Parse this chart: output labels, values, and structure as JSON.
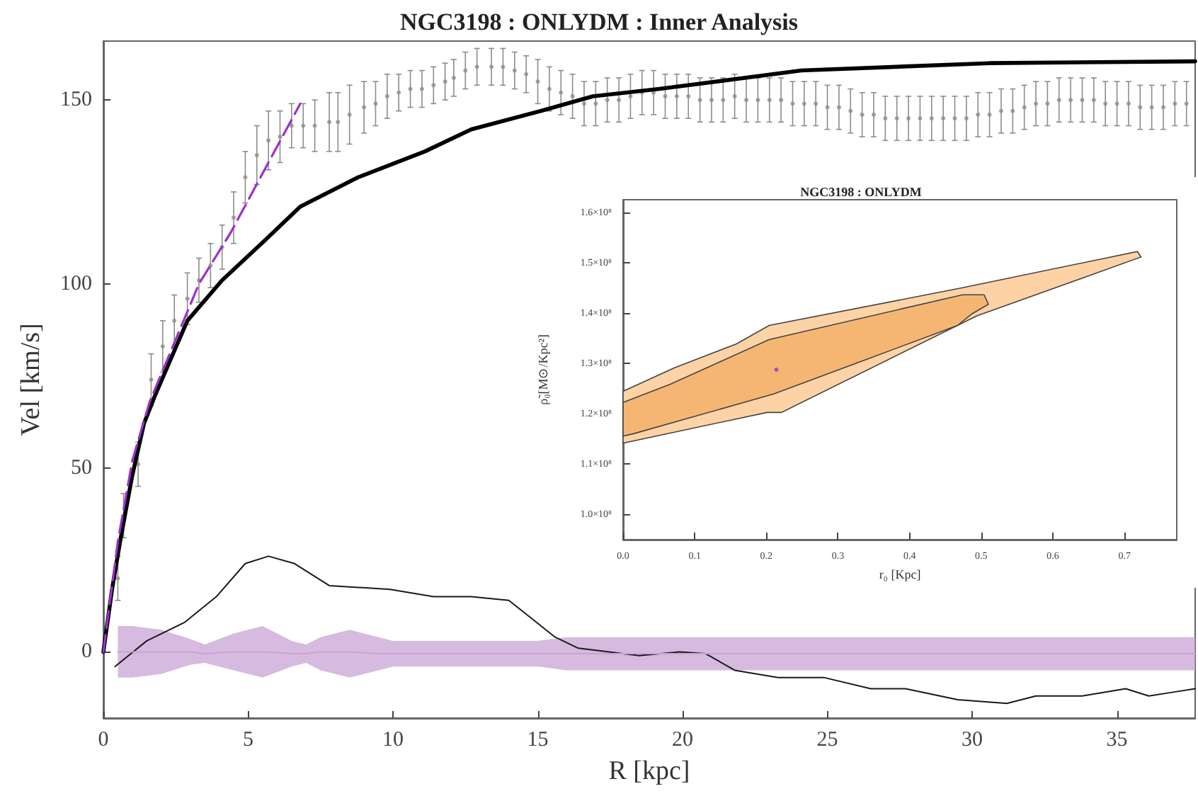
{
  "chart_data": [
    {
      "type": "line",
      "title": "NGC3198 : ONLYDM : Inner Analysis",
      "xlabel": "R [kpc]",
      "ylabel": "Vel [km/s]",
      "xlim": [
        0,
        37.7
      ],
      "ylim": [
        -18,
        166
      ],
      "xticks": [
        0,
        5,
        10,
        15,
        20,
        25,
        30,
        35
      ],
      "yticks": [
        0,
        50,
        100,
        150
      ],
      "grid": false,
      "series": [
        {
          "type": "scatter",
          "color": "#8c8c8c",
          "marker": "circle",
          "x": [
            0.5,
            0.7,
            1.2,
            1.65,
            2.05,
            2.45,
            2.9,
            3.3,
            3.7,
            4.1,
            4.5,
            4.9,
            5.3,
            5.7,
            6.1,
            6.5,
            6.9,
            7.3,
            7.8,
            8.1,
            8.5,
            9.0,
            9.4,
            9.8,
            10.2,
            10.6,
            11.0,
            11.4,
            11.8,
            12.1,
            12.5,
            12.9,
            13.4,
            13.8,
            14.2,
            14.6,
            15.0,
            15.4,
            15.8,
            16.2,
            16.6,
            17,
            17.4,
            17.8,
            18.2,
            18.6,
            19,
            19.4,
            19.8,
            20.2,
            20.6,
            21,
            21.4,
            21.8,
            22.2,
            22.6,
            23,
            23.4,
            23.8,
            24.2,
            24.6,
            25,
            25.4,
            25.8,
            26.2,
            26.6,
            27,
            27.4,
            27.8,
            28.2,
            28.6,
            29,
            29.4,
            29.8,
            30.2,
            30.6,
            31,
            31.4,
            31.8,
            32.2,
            32.6,
            33,
            33.4,
            33.8,
            34.2,
            34.6,
            35,
            35.4,
            35.8,
            36.2,
            36.6,
            37,
            37.4
          ],
          "values": [
            20,
            37,
            51,
            74,
            83,
            90,
            96,
            101,
            105,
            110,
            118,
            129,
            135,
            139,
            140,
            143,
            143,
            143,
            144,
            144,
            146,
            148,
            149,
            151,
            152,
            153,
            153,
            154,
            155,
            156,
            158,
            159,
            159,
            159,
            158,
            157,
            155,
            153,
            152,
            151,
            149,
            149,
            150,
            150,
            151,
            152,
            152,
            151,
            151,
            151,
            150,
            150,
            150,
            151,
            150,
            150,
            150,
            150,
            149,
            149,
            149,
            148,
            148,
            147,
            146,
            146,
            145,
            145,
            145,
            145,
            145,
            145,
            145,
            145,
            146,
            146,
            147,
            147,
            148,
            149,
            149,
            150,
            150,
            150,
            150,
            149,
            149,
            149,
            148,
            148,
            148,
            149,
            149
          ],
          "errors": [
            6,
            6,
            6,
            7,
            7,
            7,
            7,
            6,
            6,
            6,
            7,
            7,
            8,
            8,
            7,
            6,
            6,
            7,
            8,
            8,
            8,
            7,
            6,
            6,
            5,
            5,
            5,
            5,
            5,
            5,
            5,
            5,
            5,
            5,
            5,
            5,
            6,
            6,
            6,
            6,
            6,
            6,
            6,
            6,
            6,
            6,
            6,
            6,
            6,
            6,
            6,
            6,
            6,
            6,
            6,
            6,
            6,
            6,
            6,
            6,
            6,
            6,
            6,
            6,
            6,
            6,
            6,
            6,
            6,
            6,
            6,
            6,
            6,
            6,
            6,
            6,
            6,
            6,
            6,
            6,
            6,
            6,
            6,
            6,
            6,
            6,
            6,
            6,
            6,
            6,
            6,
            6,
            6
          ]
        },
        {
          "color": "#000000",
          "line_style": "solid",
          "x": [
            0,
            0.3,
            0.6,
            1.0,
            1.4,
            1.8,
            2.9,
            4.1,
            5.6,
            6.8,
            8.8,
            11.1,
            12.7,
            15.1,
            16.9,
            19.2,
            24.1,
            30.6,
            37.7
          ],
          "values": [
            0,
            17,
            31,
            48,
            62,
            70,
            90,
            101,
            112,
            121,
            129,
            136,
            142,
            147,
            151,
            153,
            158,
            160,
            160.5
          ]
        },
        {
          "color": "#9b30d0",
          "line_style": "dashed",
          "x": [
            0,
            0.5,
            1.0,
            1.6,
            3.3,
            4.4,
            5.7,
            6.8
          ],
          "values": [
            0,
            30,
            52,
            68,
            100,
            114,
            133,
            149
          ]
        },
        {
          "color": "#1a1a1a",
          "line_style": "solid",
          "x": [
            0.4,
            1.5,
            2.8,
            3.9,
            4.9,
            5.7,
            6.6,
            7.8,
            9.9,
            11.4,
            12.7,
            14.0,
            15.6,
            16.4,
            18.5,
            19.9,
            20.8,
            21.8,
            23.3,
            24.9,
            26.5,
            27.7,
            29.5,
            31.2,
            32.2,
            33.8,
            35.3,
            36.1,
            36.9,
            37.7
          ],
          "values": [
            -4,
            3,
            8,
            15,
            24,
            26,
            24,
            18,
            17,
            15,
            15,
            14,
            4,
            1,
            -1,
            0,
            -0.5,
            -5,
            -7,
            -7,
            -10,
            -10,
            -13,
            -14,
            -12,
            -12,
            -10,
            -12,
            -11,
            -10
          ]
        },
        {
          "color": "#c9a3d4",
          "line_style": "solid",
          "x": [
            0.5,
            1.0,
            2.0,
            3.0,
            3.5,
            4.5,
            5.5,
            6.5,
            7.0,
            7.5,
            8.5,
            9.5,
            10,
            12,
            15,
            16,
            20,
            25,
            30,
            35,
            37.7
          ],
          "values": [
            0,
            0,
            0,
            0,
            -0.5,
            0,
            0,
            -0.5,
            -0.5,
            0,
            0,
            -0.5,
            -0.5,
            -0.5,
            -0.5,
            -0.5,
            -0.5,
            -0.5,
            -0.5,
            -0.5,
            -0.5
          ],
          "lower": [
            -7,
            -7,
            -6,
            -3.5,
            -3,
            -5,
            -7,
            -4,
            -3,
            -5,
            -7,
            -5,
            -4,
            -4,
            -4,
            -5,
            -5,
            -5,
            -5,
            -5,
            -5
          ],
          "upper": [
            7,
            7,
            6,
            3.5,
            2,
            5,
            7,
            3,
            2,
            4,
            6,
            4,
            3,
            3,
            3,
            4,
            4,
            4,
            4,
            4,
            4
          ]
        }
      ]
    },
    {
      "type": "area",
      "title": "NGC3198 : ONLYDM",
      "xlabel": "r₀ [Kpc]",
      "ylabel": "ρ̃₀[M⊙/Kpc²]",
      "xlim": [
        0,
        0.773
      ],
      "ylim": [
        94900000,
        162500000
      ],
      "xticks": [
        {
          "value": 0,
          "label": "0.0"
        },
        0.1,
        0.2,
        0.3,
        0.4,
        0.5,
        0.6,
        0.7
      ],
      "yticks": [
        {
          "value": 100000000,
          "label": "1.0×10⁸"
        },
        {
          "value": 110000000,
          "label": "1.1×10⁸"
        },
        {
          "value": 120000000,
          "label": "1.2×10⁸"
        },
        {
          "value": 130000000,
          "label": "1.3×10⁸"
        },
        {
          "value": 140000000,
          "label": "1.4×10⁸"
        },
        {
          "value": 150000000,
          "label": "1.5×10⁸"
        },
        {
          "value": 160000000,
          "label": "1.6×10⁸"
        }
      ],
      "grid": false,
      "series": [
        {
          "color": "#fdd3a6",
          "x": [
            0,
            0.072,
            0.158,
            0.204,
            0.474,
            0.718,
            0.723,
            0.494,
            0.221,
            0.201,
            0
          ],
          "values": [
            124400000,
            129100000,
            133800000,
            137500000,
            145000000,
            152200000,
            151100000,
            139400000,
            120200000,
            120200000,
            114100000
          ]
        },
        {
          "color": "#f6b673",
          "x": [
            0,
            0.066,
            0.204,
            0.474,
            0.504,
            0.51,
            0.487,
            0.467,
            0.211,
            0.013,
            0
          ],
          "values": [
            122200000,
            125800000,
            134700000,
            143600000,
            143600000,
            141700000,
            139800000,
            137500000,
            123900000,
            115900000,
            115500000
          ]
        },
        {
          "type": "scatter",
          "color": "#9b30d0",
          "marker": "circle",
          "x": [
            0.214
          ],
          "values": [
            128700000
          ]
        }
      ]
    }
  ]
}
